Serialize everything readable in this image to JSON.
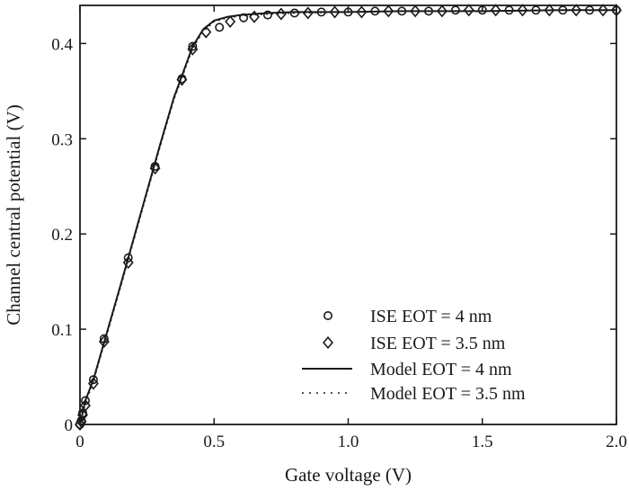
{
  "chart_data": {
    "type": "line",
    "xlabel": "Gate voltage (V)",
    "ylabel": "Channel central potential (V)",
    "xlim": [
      0,
      2.0
    ],
    "ylim": [
      0,
      0.44
    ],
    "x_ticks": [
      0,
      0.5,
      1.0,
      1.5,
      2.0
    ],
    "x_tick_labels": [
      "0",
      "0.5",
      "1.0",
      "1.5",
      "2.0"
    ],
    "y_ticks": [
      0,
      0.1,
      0.2,
      0.3,
      0.4
    ],
    "y_tick_labels": [
      "0",
      "0.1",
      "0.2",
      "0.3",
      "0.4"
    ],
    "grid": false,
    "legend_position": "bottom-right",
    "series": [
      {
        "name": "ISE EOT = 4 nm",
        "style": "circle-marker",
        "x": [
          0.0,
          0.005,
          0.01,
          0.02,
          0.05,
          0.09,
          0.18,
          0.28,
          0.38,
          0.42,
          0.52,
          0.61,
          0.7,
          0.8,
          0.9,
          1.0,
          1.1,
          1.2,
          1.3,
          1.4,
          1.5,
          1.6,
          1.7,
          1.8,
          1.9,
          2.0
        ],
        "y": [
          0.0,
          0.004,
          0.012,
          0.025,
          0.047,
          0.09,
          0.175,
          0.271,
          0.363,
          0.397,
          0.417,
          0.427,
          0.43,
          0.432,
          0.433,
          0.433,
          0.434,
          0.434,
          0.434,
          0.435,
          0.435,
          0.435,
          0.435,
          0.435,
          0.435,
          0.435
        ]
      },
      {
        "name": "ISE EOT = 3.5 nm",
        "style": "diamond-marker",
        "x": [
          0.0,
          0.005,
          0.01,
          0.02,
          0.05,
          0.09,
          0.18,
          0.28,
          0.38,
          0.42,
          0.47,
          0.56,
          0.65,
          0.75,
          0.85,
          0.95,
          1.05,
          1.15,
          1.25,
          1.35,
          1.45,
          1.55,
          1.65,
          1.75,
          1.85,
          1.95,
          2.0
        ],
        "y": [
          0.0,
          0.003,
          0.01,
          0.02,
          0.043,
          0.087,
          0.17,
          0.269,
          0.362,
          0.394,
          0.412,
          0.423,
          0.428,
          0.431,
          0.432,
          0.433,
          0.433,
          0.434,
          0.434,
          0.434,
          0.435,
          0.435,
          0.435,
          0.435,
          0.435,
          0.435,
          0.435
        ]
      },
      {
        "name": "Model EOT = 4 nm",
        "style": "solid-line",
        "x": [
          0.0,
          0.02,
          0.05,
          0.1,
          0.15,
          0.2,
          0.25,
          0.3,
          0.35,
          0.38,
          0.42,
          0.46,
          0.5,
          0.55,
          0.6,
          0.7,
          0.8,
          1.0,
          1.2,
          1.5,
          1.8,
          2.0
        ],
        "y": [
          0.0,
          0.025,
          0.047,
          0.096,
          0.145,
          0.195,
          0.245,
          0.295,
          0.343,
          0.366,
          0.397,
          0.415,
          0.424,
          0.428,
          0.43,
          0.432,
          0.433,
          0.433,
          0.434,
          0.434,
          0.435,
          0.435
        ]
      },
      {
        "name": "Model EOT = 3.5 nm",
        "style": "dotted-line",
        "x": [
          0.0,
          0.02,
          0.05,
          0.1,
          0.15,
          0.2,
          0.25,
          0.3,
          0.35,
          0.38,
          0.42,
          0.46,
          0.5,
          0.55,
          0.6,
          0.7,
          0.8,
          1.0,
          1.2,
          1.5,
          1.8,
          2.0
        ],
        "y": [
          0.0,
          0.022,
          0.045,
          0.094,
          0.143,
          0.193,
          0.243,
          0.293,
          0.341,
          0.364,
          0.395,
          0.413,
          0.423,
          0.427,
          0.429,
          0.431,
          0.432,
          0.433,
          0.434,
          0.434,
          0.435,
          0.435
        ]
      }
    ],
    "colors": {
      "ink": "#1a1a1a",
      "background": "#ffffff"
    }
  }
}
